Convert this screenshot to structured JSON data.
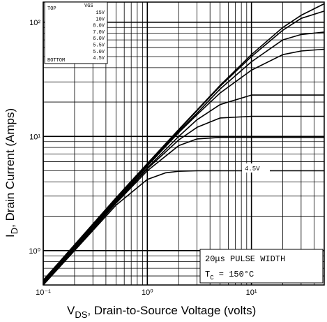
{
  "chart_data": {
    "type": "line",
    "xscale": "log",
    "yscale": "log",
    "xlim": [
      0.1,
      50
    ],
    "ylim": [
      0.5,
      150
    ],
    "xlabel_main": "V",
    "xlabel_sub": "DS",
    "xlabel_rest": ", Drain-to-Source Voltage (volts)",
    "ylabel_main": "I",
    "ylabel_sub": "D",
    "ylabel_rest": ", Drain Current (Amps)",
    "x_ticks": [
      {
        "value": 0.1,
        "label": "10⁻¹"
      },
      {
        "value": 1,
        "label": "10⁰"
      },
      {
        "value": 10,
        "label": "10¹"
      }
    ],
    "y_ticks": [
      {
        "value": 1,
        "label": "10⁰"
      },
      {
        "value": 10,
        "label": "10¹"
      },
      {
        "value": 100,
        "label": "10²"
      }
    ],
    "grid": true,
    "legend": {
      "position": "top-left",
      "header": "VGS",
      "top_label": "TOP",
      "bottom_label": "BOTTOM",
      "entries": [
        "15V",
        "10V",
        "8.0V",
        "7.0V",
        "6.0V",
        "5.5V",
        "5.0V",
        "4.5V"
      ]
    },
    "annotation": {
      "line1": "20μs PULSE WIDTH",
      "line2_main": "T",
      "line2_sub": "C",
      "line2_rest": " = 150°C"
    },
    "curve_label": "4.5V",
    "series": [
      {
        "name": "15V",
        "x": [
          0.1,
          0.5,
          1,
          2,
          3,
          5,
          10,
          20,
          30,
          50
        ],
        "y": [
          0.55,
          2.9,
          5.8,
          11.5,
          17,
          28,
          52,
          90,
          115,
          145
        ]
      },
      {
        "name": "10V",
        "x": [
          0.1,
          0.5,
          1,
          2,
          3,
          5,
          10,
          20,
          30,
          50
        ],
        "y": [
          0.55,
          2.85,
          5.7,
          11.3,
          16.8,
          27.5,
          50,
          85,
          108,
          125
        ]
      },
      {
        "name": "8.0V",
        "x": [
          0.1,
          0.5,
          1,
          2,
          3,
          5,
          10,
          20,
          30,
          50
        ],
        "y": [
          0.54,
          2.8,
          5.6,
          11,
          16,
          26,
          45,
          70,
          78,
          82
        ]
      },
      {
        "name": "7.0V",
        "x": [
          0.1,
          0.5,
          1,
          2,
          3,
          5,
          10,
          20,
          30,
          50
        ],
        "y": [
          0.53,
          2.75,
          5.5,
          10.8,
          15.5,
          24,
          38,
          52,
          56,
          58
        ]
      },
      {
        "name": "6.0V",
        "x": [
          0.1,
          0.5,
          1,
          2,
          3,
          5,
          10,
          20,
          30,
          50
        ],
        "y": [
          0.52,
          2.7,
          5.3,
          10,
          14,
          19,
          23,
          23,
          23,
          23
        ]
      },
      {
        "name": "5.5V",
        "x": [
          0.1,
          0.5,
          1,
          2,
          3,
          5,
          10,
          20,
          30,
          50
        ],
        "y": [
          0.51,
          2.65,
          5.2,
          9.3,
          12,
          14.5,
          15,
          15,
          15,
          15
        ]
      },
      {
        "name": "5.0V",
        "x": [
          0.1,
          0.5,
          1,
          2,
          3,
          5,
          10,
          20,
          30,
          50
        ],
        "y": [
          0.5,
          2.6,
          5,
          8.3,
          9.5,
          9.8,
          9.8,
          9.8,
          9.8,
          9.8
        ]
      },
      {
        "name": "4.5V",
        "x": [
          0.1,
          0.5,
          1,
          1.5,
          2,
          3,
          5,
          10,
          20,
          50
        ],
        "y": [
          0.5,
          2.5,
          4.2,
          4.8,
          4.95,
          5,
          5,
          5,
          5,
          5
        ]
      }
    ]
  }
}
